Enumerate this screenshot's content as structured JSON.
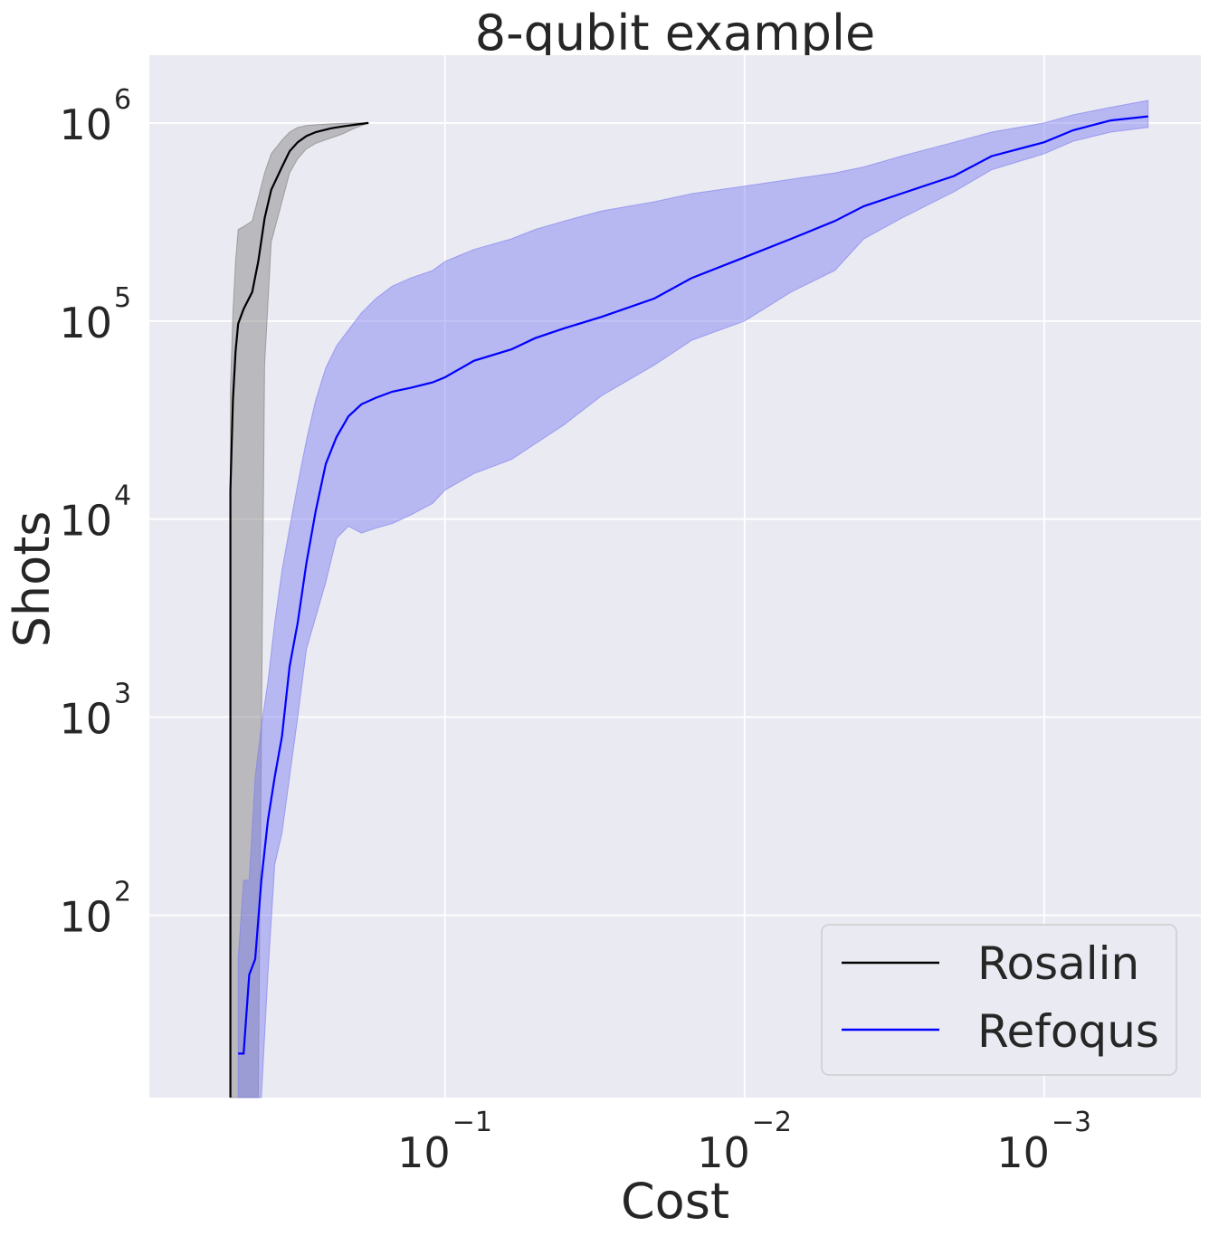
{
  "chart_data": {
    "type": "line",
    "title": "8-qubit example",
    "xlabel": "Cost",
    "ylabel": "Shots",
    "x_scale": "log",
    "y_scale": "log",
    "x_inverted": true,
    "xlim": [
      0.97,
      0.0003
    ],
    "ylim": [
      12,
      2200000
    ],
    "grid": true,
    "legend_position": "lower-right",
    "xticks": [
      {
        "value": 0.1,
        "base": "10",
        "exp": "−1"
      },
      {
        "value": 0.01,
        "base": "10",
        "exp": "−2"
      },
      {
        "value": 0.001,
        "base": "10",
        "exp": "−3"
      }
    ],
    "yticks": [
      {
        "value": 100,
        "base": "10",
        "exp": "2"
      },
      {
        "value": 1000,
        "base": "10",
        "exp": "3"
      },
      {
        "value": 10000,
        "base": "10",
        "exp": "4"
      },
      {
        "value": 100000,
        "base": "10",
        "exp": "5"
      },
      {
        "value": 1000000,
        "base": "10",
        "exp": "6"
      }
    ],
    "series": [
      {
        "name": "Rosalin",
        "color": "#000000",
        "band_color": "#7f7f7f",
        "x": [
          0.52,
          0.52,
          0.51,
          0.5,
          0.49,
          0.47,
          0.44,
          0.42,
          0.4,
          0.38,
          0.35,
          0.33,
          0.31,
          0.29,
          0.27,
          0.24,
          0.22,
          0.2,
          0.18
        ],
        "y": [
          12,
          14000,
          40000,
          70000,
          97000,
          115000,
          140000,
          200000,
          330000,
          460000,
          600000,
          720000,
          800000,
          860000,
          900000,
          940000,
          960000,
          980000,
          1000000
        ],
        "lower": [
          12,
          12,
          12,
          12,
          12,
          12,
          12,
          12,
          60000,
          250000,
          400000,
          560000,
          660000,
          740000,
          790000,
          840000,
          880000,
          940000,
          1000000
        ],
        "upper": [
          12,
          45000,
          110000,
          200000,
          290000,
          300000,
          320000,
          420000,
          560000,
          700000,
          820000,
          900000,
          950000,
          970000,
          980000,
          990000,
          995000,
          1000000,
          1000000
        ]
      },
      {
        "name": "Refoqus",
        "color": "#0000ff",
        "band_color": "#7b7bf0",
        "x": [
          0.49,
          0.47,
          0.45,
          0.43,
          0.41,
          0.39,
          0.37,
          0.35,
          0.33,
          0.31,
          0.29,
          0.27,
          0.25,
          0.23,
          0.21,
          0.19,
          0.17,
          0.15,
          0.13,
          0.11,
          0.1,
          0.08,
          0.06,
          0.05,
          0.04,
          0.03,
          0.02,
          0.015,
          0.01,
          0.007,
          0.005,
          0.004,
          0.003,
          0.002,
          0.0015,
          0.001,
          0.0008,
          0.0006,
          0.00045
        ],
        "y": [
          20,
          20,
          50,
          60,
          150,
          300,
          500,
          800,
          1800,
          3000,
          6000,
          11000,
          19000,
          26000,
          33000,
          38000,
          41000,
          44000,
          46000,
          49000,
          52000,
          63000,
          72000,
          82000,
          92000,
          105000,
          130000,
          165000,
          210000,
          260000,
          320000,
          380000,
          440000,
          540000,
          680000,
          800000,
          920000,
          1030000,
          1080000
        ],
        "lower": [
          12,
          12,
          12,
          12,
          12,
          50,
          180,
          260,
          500,
          1000,
          2200,
          3200,
          4800,
          8000,
          9200,
          8500,
          9000,
          9500,
          10500,
          12000,
          14000,
          17000,
          20000,
          24000,
          30000,
          42000,
          60000,
          80000,
          100000,
          140000,
          180000,
          260000,
          330000,
          450000,
          580000,
          700000,
          810000,
          900000,
          950000
        ],
        "upper": [
          60,
          150,
          150,
          500,
          900,
          1500,
          3000,
          5500,
          9000,
          15000,
          25000,
          40000,
          58000,
          75000,
          90000,
          110000,
          130000,
          150000,
          165000,
          180000,
          200000,
          230000,
          260000,
          290000,
          320000,
          360000,
          400000,
          440000,
          480000,
          520000,
          560000,
          600000,
          680000,
          800000,
          900000,
          1000000,
          1100000,
          1200000,
          1300000
        ]
      }
    ]
  }
}
